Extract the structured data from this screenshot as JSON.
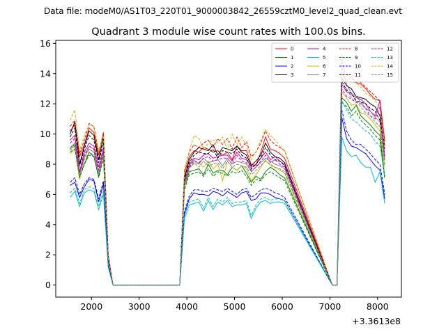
{
  "figure": {
    "suptitle": "Data file: modeM0/AS1T03_220T01_9000003842_26559cztM0_level2_quad_clean.evt"
  },
  "chart_data": {
    "type": "line",
    "title": "Quadrant 3 module wise count rates with 100.0s bins.",
    "xlabel": "",
    "ylabel": "",
    "x_offset_label": "+3.3613e8",
    "xlim": [
      1250,
      8500
    ],
    "ylim": [
      -0.8,
      16.2
    ],
    "xticks": [
      2000,
      3000,
      4000,
      5000,
      6000,
      7000,
      8000
    ],
    "yticks": [
      0,
      2,
      4,
      6,
      8,
      10,
      12,
      14,
      16
    ],
    "grid": false,
    "legend_position": "top-right",
    "x": [
      1550,
      1650,
      1750,
      1850,
      1950,
      2050,
      2150,
      2250,
      2350,
      2450,
      2550,
      3750,
      3850,
      3950,
      4050,
      4150,
      4250,
      4350,
      4450,
      4550,
      4650,
      4750,
      4850,
      4950,
      5050,
      5150,
      5250,
      5350,
      5450,
      5550,
      5650,
      5750,
      5850,
      5950,
      6050,
      7050,
      7150,
      7250,
      7350,
      7450,
      7550,
      7650,
      7750,
      7850,
      7950,
      8050,
      8150
    ],
    "series": [
      {
        "name": "0",
        "color": "#ff0000",
        "dash": false,
        "values": [
          10.2,
          10.6,
          8.5,
          9.3,
          10.4,
          10.1,
          8.6,
          10.1,
          2.0,
          0.0,
          0.0,
          0.0,
          0.0,
          7.4,
          8.5,
          8.9,
          8.8,
          9.1,
          9.0,
          8.8,
          8.9,
          8.6,
          8.8,
          8.3,
          9.2,
          8.9,
          8.9,
          8.0,
          7.9,
          8.8,
          9.8,
          9.0,
          8.9,
          8.7,
          8.4,
          0.0,
          0.0,
          14.0,
          13.5,
          13.8,
          13.4,
          13.3,
          13.0,
          12.6,
          12.3,
          12.2,
          9.5
        ]
      },
      {
        "name": "1",
        "color": "#008000",
        "dash": false,
        "values": [
          9.0,
          9.3,
          7.2,
          8.0,
          8.8,
          8.5,
          7.2,
          8.6,
          1.7,
          0.0,
          0.0,
          0.0,
          0.0,
          6.5,
          7.5,
          7.6,
          7.7,
          7.3,
          8.0,
          7.4,
          7.6,
          7.6,
          7.3,
          7.8,
          7.6,
          7.9,
          7.4,
          6.8,
          7.2,
          7.0,
          7.5,
          7.8,
          7.6,
          7.3,
          7.1,
          0.0,
          0.0,
          12.4,
          12.1,
          11.5,
          11.9,
          11.2,
          10.9,
          10.6,
          10.2,
          9.9,
          7.2
        ]
      },
      {
        "name": "2",
        "color": "#0000ff",
        "dash": false,
        "values": [
          6.6,
          6.8,
          5.8,
          6.5,
          7.0,
          6.9,
          5.5,
          6.7,
          1.3,
          0.0,
          0.0,
          0.0,
          0.0,
          4.7,
          5.7,
          6.1,
          6.0,
          6.0,
          5.9,
          6.2,
          6.1,
          5.9,
          6.2,
          6.0,
          5.8,
          6.1,
          6.2,
          5.6,
          5.7,
          6.1,
          6.1,
          6.0,
          5.8,
          5.7,
          5.6,
          0.0,
          0.0,
          11.1,
          9.7,
          9.2,
          9.1,
          8.9,
          8.7,
          8.3,
          7.9,
          7.6,
          5.7
        ]
      },
      {
        "name": "3",
        "color": "#000000",
        "dash": false,
        "values": [
          10.0,
          10.8,
          8.0,
          9.2,
          10.2,
          9.9,
          8.3,
          9.8,
          1.9,
          0.0,
          0.0,
          0.0,
          0.0,
          7.1,
          8.3,
          8.8,
          9.1,
          9.0,
          8.9,
          9.3,
          8.6,
          9.1,
          9.0,
          8.9,
          9.2,
          8.8,
          8.6,
          7.9,
          8.2,
          8.6,
          9.4,
          8.8,
          8.5,
          8.4,
          8.1,
          0.0,
          0.0,
          13.7,
          13.2,
          13.0,
          12.5,
          12.4,
          12.3,
          12.0,
          11.8,
          11.2,
          9.2
        ]
      },
      {
        "name": "4",
        "color": "#c000c0",
        "dash": false,
        "values": [
          9.6,
          9.9,
          7.5,
          8.8,
          9.4,
          9.2,
          7.8,
          9.1,
          1.8,
          0.0,
          0.0,
          0.0,
          0.0,
          6.8,
          8.0,
          8.4,
          8.3,
          8.6,
          8.7,
          8.4,
          8.5,
          8.6,
          8.6,
          8.2,
          8.8,
          8.4,
          8.3,
          7.8,
          8.0,
          8.4,
          8.8,
          8.3,
          8.5,
          8.2,
          8.0,
          0.0,
          0.0,
          13.3,
          12.8,
          12.6,
          12.4,
          12.3,
          12.0,
          11.5,
          11.2,
          12.2,
          8.5
        ]
      },
      {
        "name": "5",
        "color": "#00bfbf",
        "dash": false,
        "values": [
          5.8,
          6.2,
          5.2,
          6.1,
          6.3,
          6.2,
          5.0,
          6.0,
          1.2,
          0.0,
          0.0,
          0.0,
          0.0,
          4.4,
          5.3,
          5.4,
          5.5,
          4.9,
          5.6,
          5.0,
          5.5,
          5.3,
          5.6,
          5.2,
          5.3,
          5.3,
          5.4,
          4.4,
          5.1,
          5.5,
          5.6,
          5.4,
          5.5,
          5.5,
          5.4,
          0.0,
          0.0,
          9.8,
          8.9,
          8.5,
          8.6,
          8.1,
          7.8,
          7.8,
          6.8,
          7.5,
          5.4
        ]
      },
      {
        "name": "6",
        "color": "#bfbf00",
        "dash": false,
        "values": [
          8.7,
          9.0,
          7.0,
          8.4,
          9.2,
          9.0,
          7.4,
          8.8,
          1.7,
          0.0,
          0.0,
          0.0,
          0.0,
          6.5,
          7.8,
          8.0,
          8.1,
          7.8,
          8.2,
          7.7,
          8.0,
          6.9,
          8.2,
          7.8,
          7.6,
          7.9,
          7.7,
          6.9,
          7.3,
          7.8,
          8.3,
          7.9,
          7.8,
          7.6,
          7.4,
          0.0,
          0.0,
          12.8,
          12.4,
          11.9,
          12.0,
          11.4,
          11.3,
          11.0,
          10.6,
          10.2,
          7.8
        ]
      },
      {
        "name": "7",
        "color": "#808080",
        "dash": false,
        "values": [
          9.1,
          9.4,
          7.4,
          8.5,
          9.0,
          8.8,
          7.4,
          8.8,
          1.7,
          0.0,
          0.0,
          0.0,
          0.0,
          6.7,
          7.9,
          8.3,
          8.0,
          8.4,
          8.1,
          8.2,
          8.3,
          7.9,
          8.4,
          8.0,
          8.2,
          8.1,
          8.0,
          7.5,
          7.8,
          8.1,
          8.4,
          8.2,
          8.0,
          7.9,
          7.7,
          0.0,
          0.0,
          15.3,
          13.3,
          12.7,
          12.5,
          12.1,
          11.7,
          11.5,
          11.1,
          10.8,
          8.3
        ]
      },
      {
        "name": "8",
        "color": "#ff0000",
        "dash": true,
        "values": [
          10.5,
          10.9,
          8.7,
          9.6,
          10.7,
          10.5,
          8.8,
          10.0,
          2.0,
          0.0,
          0.0,
          0.0,
          0.0,
          7.6,
          8.8,
          9.3,
          9.1,
          9.4,
          9.6,
          9.1,
          9.7,
          9.3,
          9.7,
          9.0,
          9.8,
          9.1,
          9.5,
          8.5,
          8.8,
          9.4,
          10.2,
          9.6,
          9.3,
          9.1,
          8.9,
          0.0,
          0.0,
          14.6,
          14.0,
          13.7,
          13.5,
          13.4,
          13.1,
          12.8,
          12.5,
          12.2,
          9.6
        ]
      },
      {
        "name": "9",
        "color": "#008000",
        "dash": true,
        "values": [
          8.8,
          9.0,
          7.1,
          8.0,
          8.6,
          8.5,
          7.1,
          8.4,
          1.6,
          0.0,
          0.0,
          0.0,
          0.0,
          6.3,
          7.3,
          7.4,
          7.5,
          7.2,
          7.7,
          7.2,
          7.5,
          7.4,
          7.2,
          7.5,
          7.4,
          7.6,
          7.2,
          6.6,
          7.0,
          6.9,
          7.3,
          7.5,
          7.3,
          7.1,
          6.9,
          0.0,
          0.0,
          12.1,
          11.8,
          11.2,
          11.5,
          10.9,
          10.6,
          10.3,
          9.9,
          9.6,
          7.0
        ]
      },
      {
        "name": "10",
        "color": "#0000ff",
        "dash": true,
        "values": [
          6.8,
          7.1,
          6.0,
          6.7,
          7.1,
          7.0,
          5.7,
          6.9,
          1.3,
          0.0,
          0.0,
          0.0,
          0.0,
          4.9,
          5.9,
          6.3,
          6.3,
          6.2,
          6.2,
          6.4,
          6.3,
          6.2,
          6.4,
          6.2,
          6.0,
          6.3,
          6.4,
          5.8,
          6.0,
          6.3,
          6.4,
          6.3,
          6.1,
          6.0,
          5.8,
          0.0,
          0.0,
          11.6,
          10.2,
          9.6,
          9.3,
          9.3,
          9.0,
          8.7,
          8.3,
          8.0,
          6.0
        ]
      },
      {
        "name": "11",
        "color": "#000000",
        "dash": true,
        "values": [
          9.8,
          10.4,
          7.9,
          9.0,
          9.9,
          9.6,
          8.1,
          9.5,
          1.8,
          0.0,
          0.0,
          0.0,
          0.0,
          7.0,
          8.1,
          8.6,
          8.8,
          8.7,
          8.7,
          9.0,
          8.4,
          8.9,
          8.8,
          8.7,
          9.0,
          8.6,
          8.4,
          7.7,
          8.0,
          8.4,
          9.1,
          8.6,
          8.3,
          8.2,
          7.9,
          0.0,
          0.0,
          13.5,
          12.9,
          12.7,
          12.2,
          12.1,
          12.0,
          11.7,
          11.5,
          10.9,
          9.0
        ]
      },
      {
        "name": "12",
        "color": "#c000c0",
        "dash": true,
        "values": [
          9.4,
          9.7,
          7.4,
          8.6,
          9.2,
          9.0,
          7.6,
          8.9,
          1.7,
          0.0,
          0.0,
          0.0,
          0.0,
          6.7,
          7.8,
          8.2,
          8.1,
          8.4,
          8.5,
          8.2,
          8.3,
          8.4,
          8.4,
          8.0,
          8.6,
          8.2,
          8.1,
          7.6,
          7.8,
          8.2,
          8.6,
          8.1,
          8.3,
          8.0,
          7.8,
          0.0,
          0.0,
          13.0,
          12.5,
          12.3,
          12.1,
          12.0,
          11.7,
          11.2,
          11.0,
          11.8,
          8.3
        ]
      },
      {
        "name": "13",
        "color": "#00bfbf",
        "dash": true,
        "values": [
          6.1,
          6.4,
          5.4,
          6.3,
          6.5,
          6.4,
          5.2,
          6.2,
          1.2,
          0.0,
          0.0,
          0.0,
          0.0,
          4.6,
          5.5,
          5.6,
          5.7,
          5.1,
          5.8,
          5.2,
          5.7,
          5.5,
          5.8,
          5.4,
          5.5,
          5.5,
          5.6,
          4.6,
          5.3,
          5.7,
          5.8,
          5.6,
          5.7,
          5.7,
          5.6,
          0.0,
          0.0,
          12.2,
          11.6,
          11.0,
          10.8,
          10.5,
          10.2,
          10.0,
          9.5,
          9.2,
          7.3
        ]
      },
      {
        "name": "14",
        "color": "#bfbf00",
        "dash": true,
        "values": [
          10.9,
          11.6,
          8.9,
          9.9,
          10.6,
          10.5,
          8.8,
          9.9,
          1.9,
          0.0,
          0.0,
          0.0,
          0.0,
          7.5,
          8.9,
          9.9,
          9.7,
          9.0,
          9.4,
          9.6,
          9.4,
          9.8,
          9.0,
          10.0,
          9.3,
          9.8,
          9.2,
          8.3,
          8.8,
          9.6,
          10.3,
          9.9,
          9.6,
          9.2,
          8.9,
          0.0,
          0.0,
          14.4,
          13.8,
          13.4,
          13.4,
          13.1,
          12.7,
          12.5,
          12.2,
          11.8,
          9.0
        ]
      },
      {
        "name": "15",
        "color": "#808080",
        "dash": true,
        "values": [
          8.9,
          9.2,
          7.3,
          8.3,
          8.8,
          8.6,
          7.3,
          8.6,
          1.7,
          0.0,
          0.0,
          0.0,
          0.0,
          6.6,
          7.7,
          8.1,
          7.8,
          8.2,
          7.9,
          8.0,
          8.1,
          7.7,
          8.2,
          7.8,
          8.0,
          7.9,
          7.8,
          7.3,
          7.6,
          7.9,
          8.2,
          8.0,
          7.8,
          7.7,
          7.5,
          0.0,
          0.0,
          14.9,
          13.0,
          12.4,
          12.2,
          11.8,
          11.4,
          11.2,
          10.8,
          10.5,
          8.0
        ]
      }
    ]
  }
}
